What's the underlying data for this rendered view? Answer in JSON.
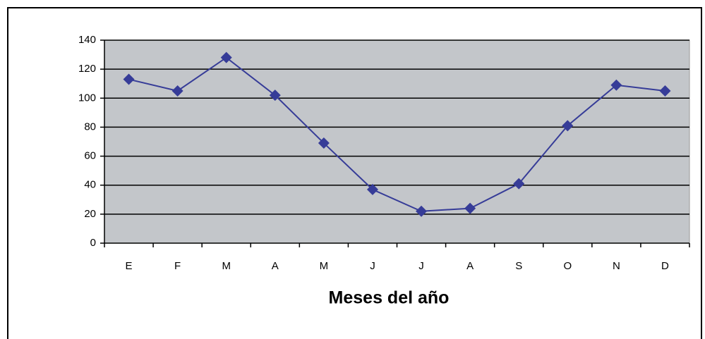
{
  "chart_data": {
    "type": "line",
    "x_label": "Meses del año",
    "categories": [
      "E",
      "F",
      "M",
      "A",
      "M",
      "J",
      "J",
      "A",
      "S",
      "O",
      "N",
      "D"
    ],
    "series": [
      {
        "color": "#363c98",
        "values": [
          113,
          105,
          128,
          102,
          69,
          37,
          22,
          24,
          41,
          81,
          109,
          105
        ]
      }
    ],
    "ylim": [
      0,
      140
    ],
    "yticks": [
      0,
      20,
      40,
      60,
      80,
      100,
      120,
      140
    ],
    "grid": true,
    "plot_background": "#c3c6ca"
  }
}
